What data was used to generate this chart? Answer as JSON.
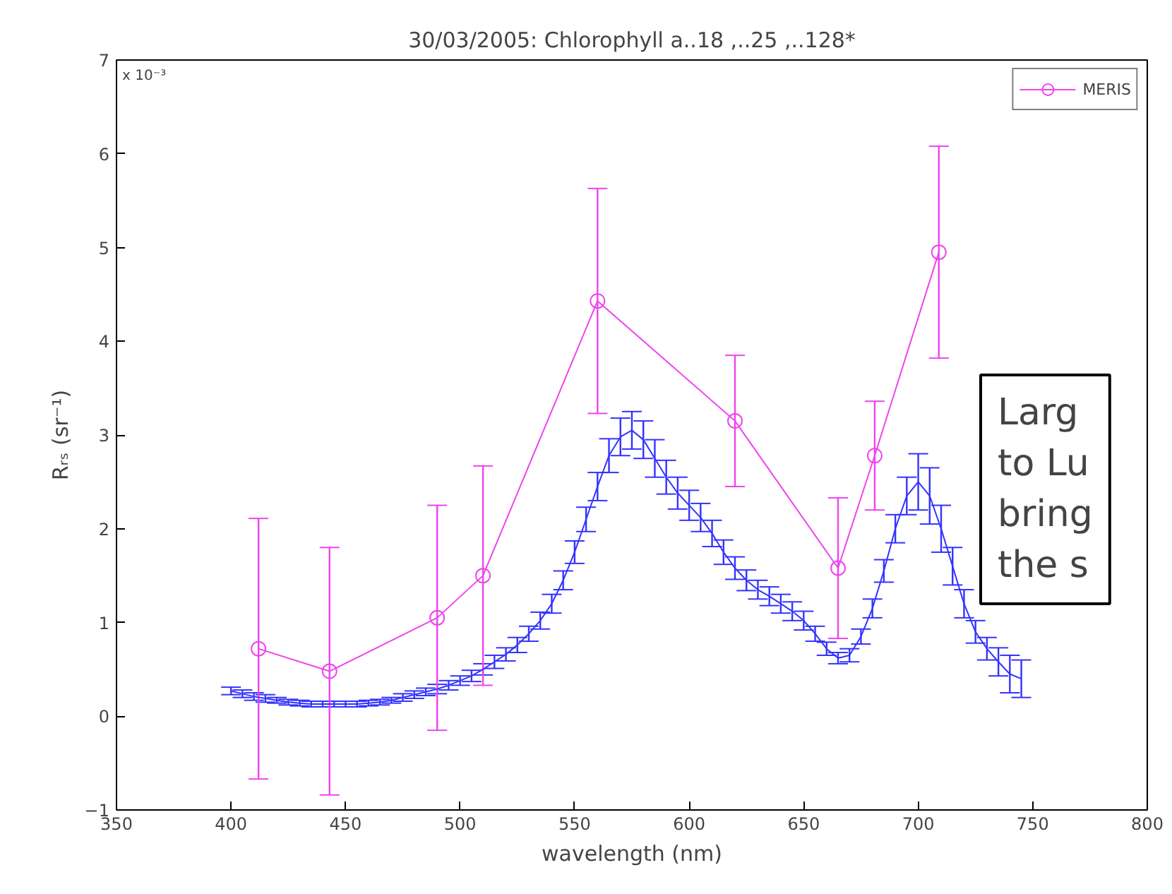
{
  "chart_data": {
    "type": "line",
    "title": "30/03/2005: Chlorophyll a..18 ,..25 ,..128*",
    "xlabel": "wavelength (nm)",
    "ylabel": "Rᵣₛ (sr⁻¹)",
    "annotations": [
      "x 10⁻³",
      "Larg\nto Lu\nbring\nthe s"
    ],
    "xlim": [
      350,
      800
    ],
    "xticks": [
      350,
      400,
      450,
      500,
      550,
      600,
      650,
      700,
      750,
      800
    ],
    "ylim": [
      -1,
      7
    ],
    "yticks": [
      -1,
      0,
      1,
      2,
      3,
      4,
      5,
      6,
      7
    ],
    "grid": false,
    "legend": "top right",
    "series": [
      {
        "color": "#3333ff",
        "marker": "none",
        "x": [
          400,
          405,
          410,
          415,
          420,
          425,
          430,
          435,
          440,
          445,
          450,
          455,
          460,
          465,
          470,
          475,
          480,
          485,
          490,
          495,
          500,
          505,
          510,
          515,
          520,
          525,
          530,
          535,
          540,
          545,
          550,
          555,
          560,
          565,
          570,
          575,
          580,
          585,
          590,
          595,
          600,
          605,
          610,
          615,
          620,
          625,
          630,
          635,
          640,
          645,
          650,
          655,
          660,
          665,
          670,
          675,
          680,
          685,
          690,
          695,
          700,
          705,
          710,
          715,
          720,
          725,
          730,
          735,
          740,
          745
        ],
        "values": [
          0.27,
          0.24,
          0.21,
          0.19,
          0.17,
          0.15,
          0.14,
          0.13,
          0.13,
          0.13,
          0.13,
          0.13,
          0.14,
          0.15,
          0.17,
          0.2,
          0.23,
          0.26,
          0.29,
          0.33,
          0.38,
          0.43,
          0.5,
          0.58,
          0.66,
          0.76,
          0.88,
          1.02,
          1.2,
          1.45,
          1.75,
          2.1,
          2.45,
          2.78,
          2.98,
          3.05,
          2.95,
          2.75,
          2.55,
          2.38,
          2.25,
          2.12,
          1.95,
          1.75,
          1.58,
          1.45,
          1.35,
          1.28,
          1.2,
          1.12,
          1.02,
          0.88,
          0.72,
          0.62,
          0.65,
          0.85,
          1.15,
          1.55,
          2.0,
          2.35,
          2.5,
          2.35,
          2.0,
          1.6,
          1.2,
          0.9,
          0.72,
          0.58,
          0.45,
          0.4
        ],
        "errors": [
          0.04,
          0.04,
          0.04,
          0.04,
          0.03,
          0.03,
          0.03,
          0.03,
          0.03,
          0.03,
          0.03,
          0.03,
          0.03,
          0.03,
          0.03,
          0.04,
          0.04,
          0.04,
          0.05,
          0.05,
          0.05,
          0.06,
          0.06,
          0.07,
          0.07,
          0.08,
          0.08,
          0.09,
          0.1,
          0.1,
          0.12,
          0.13,
          0.15,
          0.18,
          0.2,
          0.2,
          0.2,
          0.2,
          0.18,
          0.17,
          0.16,
          0.15,
          0.14,
          0.13,
          0.12,
          0.11,
          0.1,
          0.1,
          0.1,
          0.1,
          0.1,
          0.08,
          0.07,
          0.06,
          0.07,
          0.08,
          0.1,
          0.12,
          0.15,
          0.2,
          0.3,
          0.3,
          0.25,
          0.2,
          0.15,
          0.12,
          0.12,
          0.15,
          0.2,
          0.2
        ]
      },
      {
        "name": "MERIS",
        "color": "#ee44ee",
        "marker": "circle",
        "x": [
          412,
          443,
          490,
          510,
          560,
          620,
          665,
          681,
          709
        ],
        "values": [
          0.72,
          0.48,
          1.05,
          1.5,
          4.43,
          3.15,
          1.58,
          2.78,
          4.95
        ],
        "errors": [
          1.39,
          1.32,
          1.2,
          1.17,
          1.2,
          0.7,
          0.75,
          0.58,
          1.13
        ]
      }
    ]
  }
}
